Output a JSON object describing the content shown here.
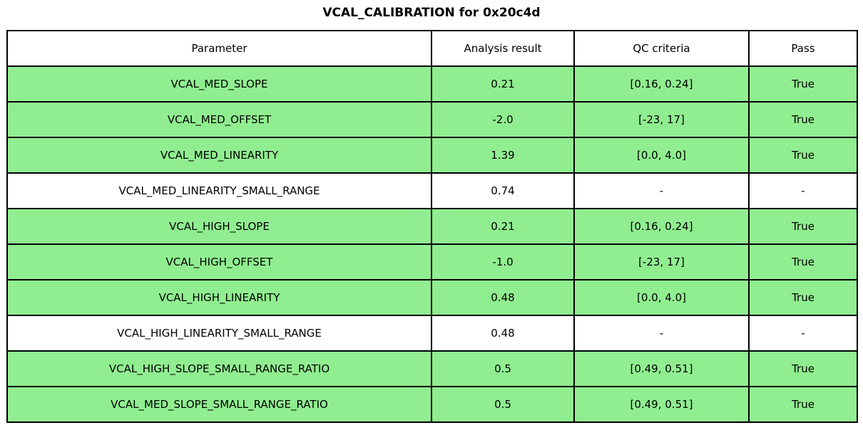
{
  "title": "VCAL_CALIBRATION for 0x20c4d",
  "colors": {
    "pass_row_background": "#90ee90",
    "neutral_row_background": "#ffffff",
    "border": "#000000",
    "text": "#000000",
    "page_background": "#ffffff"
  },
  "chart_data": {
    "type": "table",
    "title": "VCAL_CALIBRATION for 0x20c4d",
    "columns": [
      "Parameter",
      "Analysis result",
      "QC criteria",
      "Pass"
    ],
    "rows": [
      {
        "parameter": "VCAL_MED_SLOPE",
        "result": "0.21",
        "qc": "[0.16, 0.24]",
        "pass": "True",
        "highlight": true
      },
      {
        "parameter": "VCAL_MED_OFFSET",
        "result": "-2.0",
        "qc": "[-23, 17]",
        "pass": "True",
        "highlight": true
      },
      {
        "parameter": "VCAL_MED_LINEARITY",
        "result": "1.39",
        "qc": "[0.0, 4.0]",
        "pass": "True",
        "highlight": true
      },
      {
        "parameter": "VCAL_MED_LINEARITY_SMALL_RANGE",
        "result": "0.74",
        "qc": "-",
        "pass": "-",
        "highlight": false
      },
      {
        "parameter": "VCAL_HIGH_SLOPE",
        "result": "0.21",
        "qc": "[0.16, 0.24]",
        "pass": "True",
        "highlight": true
      },
      {
        "parameter": "VCAL_HIGH_OFFSET",
        "result": "-1.0",
        "qc": "[-23, 17]",
        "pass": "True",
        "highlight": true
      },
      {
        "parameter": "VCAL_HIGH_LINEARITY",
        "result": "0.48",
        "qc": "[0.0, 4.0]",
        "pass": "True",
        "highlight": true
      },
      {
        "parameter": "VCAL_HIGH_LINEARITY_SMALL_RANGE",
        "result": "0.48",
        "qc": "-",
        "pass": "-",
        "highlight": false
      },
      {
        "parameter": "VCAL_HIGH_SLOPE_SMALL_RANGE_RATIO",
        "result": "0.5",
        "qc": "[0.49, 0.51]",
        "pass": "True",
        "highlight": true
      },
      {
        "parameter": "VCAL_MED_SLOPE_SMALL_RANGE_RATIO",
        "result": "0.5",
        "qc": "[0.49, 0.51]",
        "pass": "True",
        "highlight": true
      }
    ]
  }
}
